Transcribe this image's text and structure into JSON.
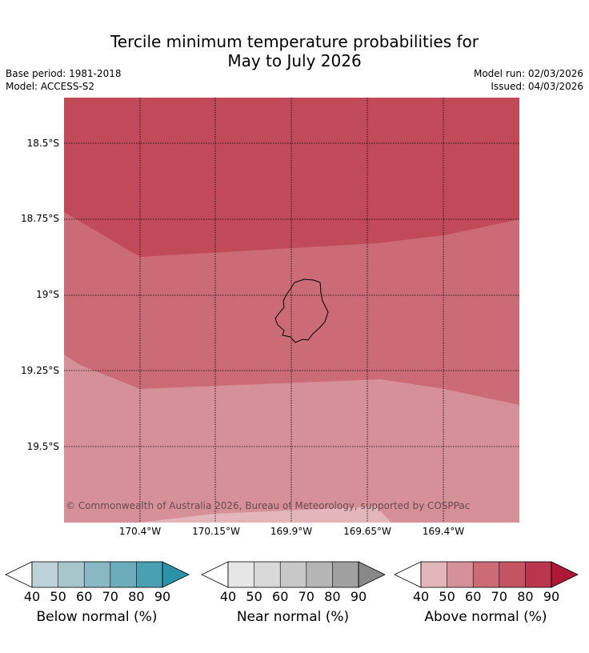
{
  "title": {
    "line1": "Tercile minimum temperature probabilities for",
    "line2": "May to July 2026"
  },
  "meta": {
    "base_period": "Base period: 1981-2018",
    "model": "Model: ACCESS-S2",
    "model_run": "Model run: 02/03/2026",
    "issued": "Issued: 04/03/2026"
  },
  "map": {
    "lat_labels": [
      "18.5°S",
      "18.75°S",
      "19°S",
      "19.25°S",
      "19.5°S"
    ],
    "lon_labels": [
      "170.4°W",
      "170.15°W",
      "169.9°W",
      "169.65°W",
      "169.4°W"
    ],
    "credit": "© Commonwealth of Australia 2026, Bureau of Meteorology, supported by COSPPac",
    "colors": {
      "above_90": "#c04a58",
      "above_70": "#cb6b75",
      "above_50": "#d69097",
      "above_40": "#e2b6bb"
    }
  },
  "colorbars": [
    {
      "name": "below",
      "label": "Below normal (%)",
      "ticks": [
        "40",
        "50",
        "60",
        "70",
        "80",
        "90"
      ],
      "colors": [
        "#ffffff",
        "#bdd2d8",
        "#a6c6cc",
        "#89b7c2",
        "#6dadbb",
        "#4aa0b3",
        "#2b92a8"
      ]
    },
    {
      "name": "near",
      "label": "Near normal (%)",
      "ticks": [
        "40",
        "50",
        "60",
        "70",
        "80",
        "90"
      ],
      "colors": [
        "#ffffff",
        "#e6e6e6",
        "#d8d8d8",
        "#c8c8c8",
        "#b5b5b5",
        "#a0a0a0",
        "#888888"
      ]
    },
    {
      "name": "above",
      "label": "Above normal (%)",
      "ticks": [
        "40",
        "50",
        "60",
        "70",
        "80",
        "90"
      ],
      "colors": [
        "#ffffff",
        "#e2b6bb",
        "#d69097",
        "#cb6b75",
        "#c45462",
        "#b9364c",
        "#ad1836"
      ]
    }
  ]
}
